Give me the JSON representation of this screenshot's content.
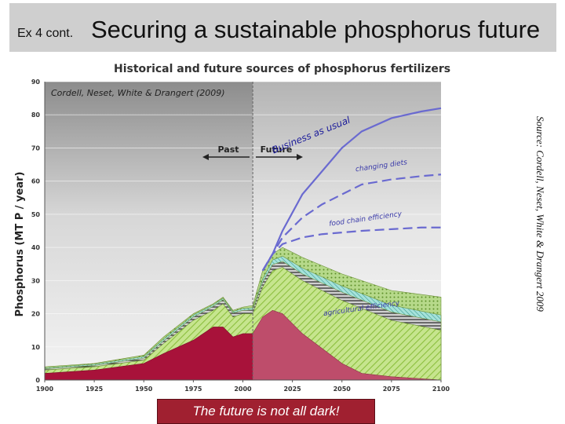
{
  "slide": {
    "title_prefix": "Ex 4 cont.",
    "title": "Securing a sustainable phosphorus future",
    "source": "Source: Cordell, Neset, White & Drangert 2009",
    "caption": "The future is not all dark!"
  },
  "chart_data": {
    "type": "area",
    "title": "Historical and future sources of phosphorus fertilizers",
    "subtitle": "Cordell, Neset, White & Drangert (2009)",
    "ylabel": "Phosphorus (MT P / year)",
    "xlabel": "",
    "xlim": [
      1900,
      2100
    ],
    "ylim": [
      0,
      90
    ],
    "x_ticks": [
      1900,
      1925,
      1950,
      1975,
      2000,
      2025,
      2050,
      2075,
      2100
    ],
    "y_ticks": [
      0,
      10,
      20,
      30,
      40,
      50,
      60,
      70,
      80,
      90
    ],
    "grid": true,
    "divider_x": 2005,
    "period_labels": [
      "Past",
      "Future"
    ],
    "stack_series": [
      {
        "key": "mineral",
        "color": "#a8123a",
        "points": [
          [
            1900,
            2
          ],
          [
            1925,
            3
          ],
          [
            1950,
            5
          ],
          [
            1960,
            8
          ],
          [
            1975,
            12
          ],
          [
            1985,
            16
          ],
          [
            1990,
            16
          ],
          [
            1995,
            13
          ],
          [
            2000,
            14
          ],
          [
            2005,
            14
          ],
          [
            2010,
            19
          ],
          [
            2015,
            21
          ],
          [
            2020,
            20
          ],
          [
            2030,
            14
          ],
          [
            2050,
            5
          ],
          [
            2060,
            2
          ],
          [
            2075,
            1
          ],
          [
            2100,
            0
          ]
        ]
      },
      {
        "key": "green",
        "color": "#a8d26a",
        "points": [
          [
            1900,
            3
          ],
          [
            1925,
            4
          ],
          [
            1950,
            6
          ],
          [
            1960,
            11
          ],
          [
            1975,
            18
          ],
          [
            1985,
            21
          ],
          [
            1990,
            23
          ],
          [
            1995,
            19
          ],
          [
            2000,
            20
          ],
          [
            2005,
            20
          ],
          [
            2010,
            28
          ],
          [
            2015,
            33
          ],
          [
            2020,
            34
          ],
          [
            2030,
            30
          ],
          [
            2050,
            24
          ],
          [
            2075,
            18
          ],
          [
            2100,
            15
          ]
        ]
      },
      {
        "key": "striped",
        "color": "#4a4a4a",
        "points": [
          [
            1900,
            3.4
          ],
          [
            1925,
            4.4
          ],
          [
            1950,
            6.6
          ],
          [
            1960,
            11.8
          ],
          [
            1975,
            19
          ],
          [
            1985,
            22.2
          ],
          [
            1990,
            24.2
          ],
          [
            1995,
            20.2
          ],
          [
            2000,
            21
          ],
          [
            2005,
            21.2
          ],
          [
            2010,
            29.5
          ],
          [
            2015,
            34.8
          ],
          [
            2020,
            35.8
          ],
          [
            2030,
            32
          ],
          [
            2050,
            26.5
          ],
          [
            2075,
            20.5
          ],
          [
            2100,
            17.5
          ]
        ]
      },
      {
        "key": "teal",
        "color": "#7fd0c8",
        "points": [
          [
            1900,
            3.7
          ],
          [
            1925,
            4.8
          ],
          [
            1950,
            7.1
          ],
          [
            1960,
            12.4
          ],
          [
            1975,
            19.6
          ],
          [
            1985,
            22.7
          ],
          [
            1990,
            24.7
          ],
          [
            1995,
            20.7
          ],
          [
            2000,
            21.6
          ],
          [
            2005,
            21.8
          ],
          [
            2010,
            30.5
          ],
          [
            2015,
            36.2
          ],
          [
            2020,
            37.4
          ],
          [
            2030,
            33.8
          ],
          [
            2050,
            28.4
          ],
          [
            2075,
            22.6
          ],
          [
            2100,
            19.6
          ]
        ]
      },
      {
        "key": "upper",
        "color": "#9ac25a",
        "points": [
          [
            1900,
            4
          ],
          [
            1925,
            5
          ],
          [
            1950,
            7.5
          ],
          [
            1960,
            13
          ],
          [
            1975,
            20
          ],
          [
            1985,
            23
          ],
          [
            1990,
            25
          ],
          [
            1995,
            21
          ],
          [
            2000,
            22
          ],
          [
            2005,
            22.5
          ],
          [
            2010,
            33
          ],
          [
            2015,
            38
          ],
          [
            2020,
            40
          ],
          [
            2030,
            37
          ],
          [
            2050,
            32
          ],
          [
            2075,
            27
          ],
          [
            2100,
            25
          ]
        ]
      }
    ],
    "demand_series": [
      {
        "name": "business as usual",
        "style": "solid",
        "color": "#6a6ad0",
        "points": [
          [
            2010,
            33
          ],
          [
            2015,
            38
          ],
          [
            2020,
            45
          ],
          [
            2030,
            56
          ],
          [
            2040,
            63
          ],
          [
            2050,
            70
          ],
          [
            2060,
            75
          ],
          [
            2075,
            79
          ],
          [
            2090,
            81
          ],
          [
            2100,
            82
          ]
        ]
      },
      {
        "name": "changing diets",
        "style": "dashed",
        "color": "#6a6ad0",
        "points": [
          [
            2010,
            33
          ],
          [
            2015,
            38
          ],
          [
            2020,
            43
          ],
          [
            2030,
            49
          ],
          [
            2040,
            53
          ],
          [
            2050,
            56
          ],
          [
            2060,
            59
          ],
          [
            2075,
            60.5
          ],
          [
            2090,
            61.5
          ],
          [
            2100,
            62
          ]
        ]
      },
      {
        "name": "food chain efficiency",
        "style": "dashed",
        "color": "#6a6ad0",
        "points": [
          [
            2010,
            33
          ],
          [
            2015,
            38
          ],
          [
            2020,
            41
          ],
          [
            2030,
            43
          ],
          [
            2040,
            44
          ],
          [
            2050,
            44.5
          ],
          [
            2060,
            45
          ],
          [
            2075,
            45.5
          ],
          [
            2090,
            46
          ],
          [
            2100,
            46
          ]
        ]
      }
    ],
    "annotations": [
      {
        "text": "Business as usual",
        "x": 2035,
        "y": 73
      },
      {
        "text": "changing diets",
        "x": 2070,
        "y": 64
      },
      {
        "text": "food chain efficiency",
        "x": 2062,
        "y": 48
      },
      {
        "text": "agricultural efficiency",
        "x": 2060,
        "y": 21
      }
    ]
  }
}
